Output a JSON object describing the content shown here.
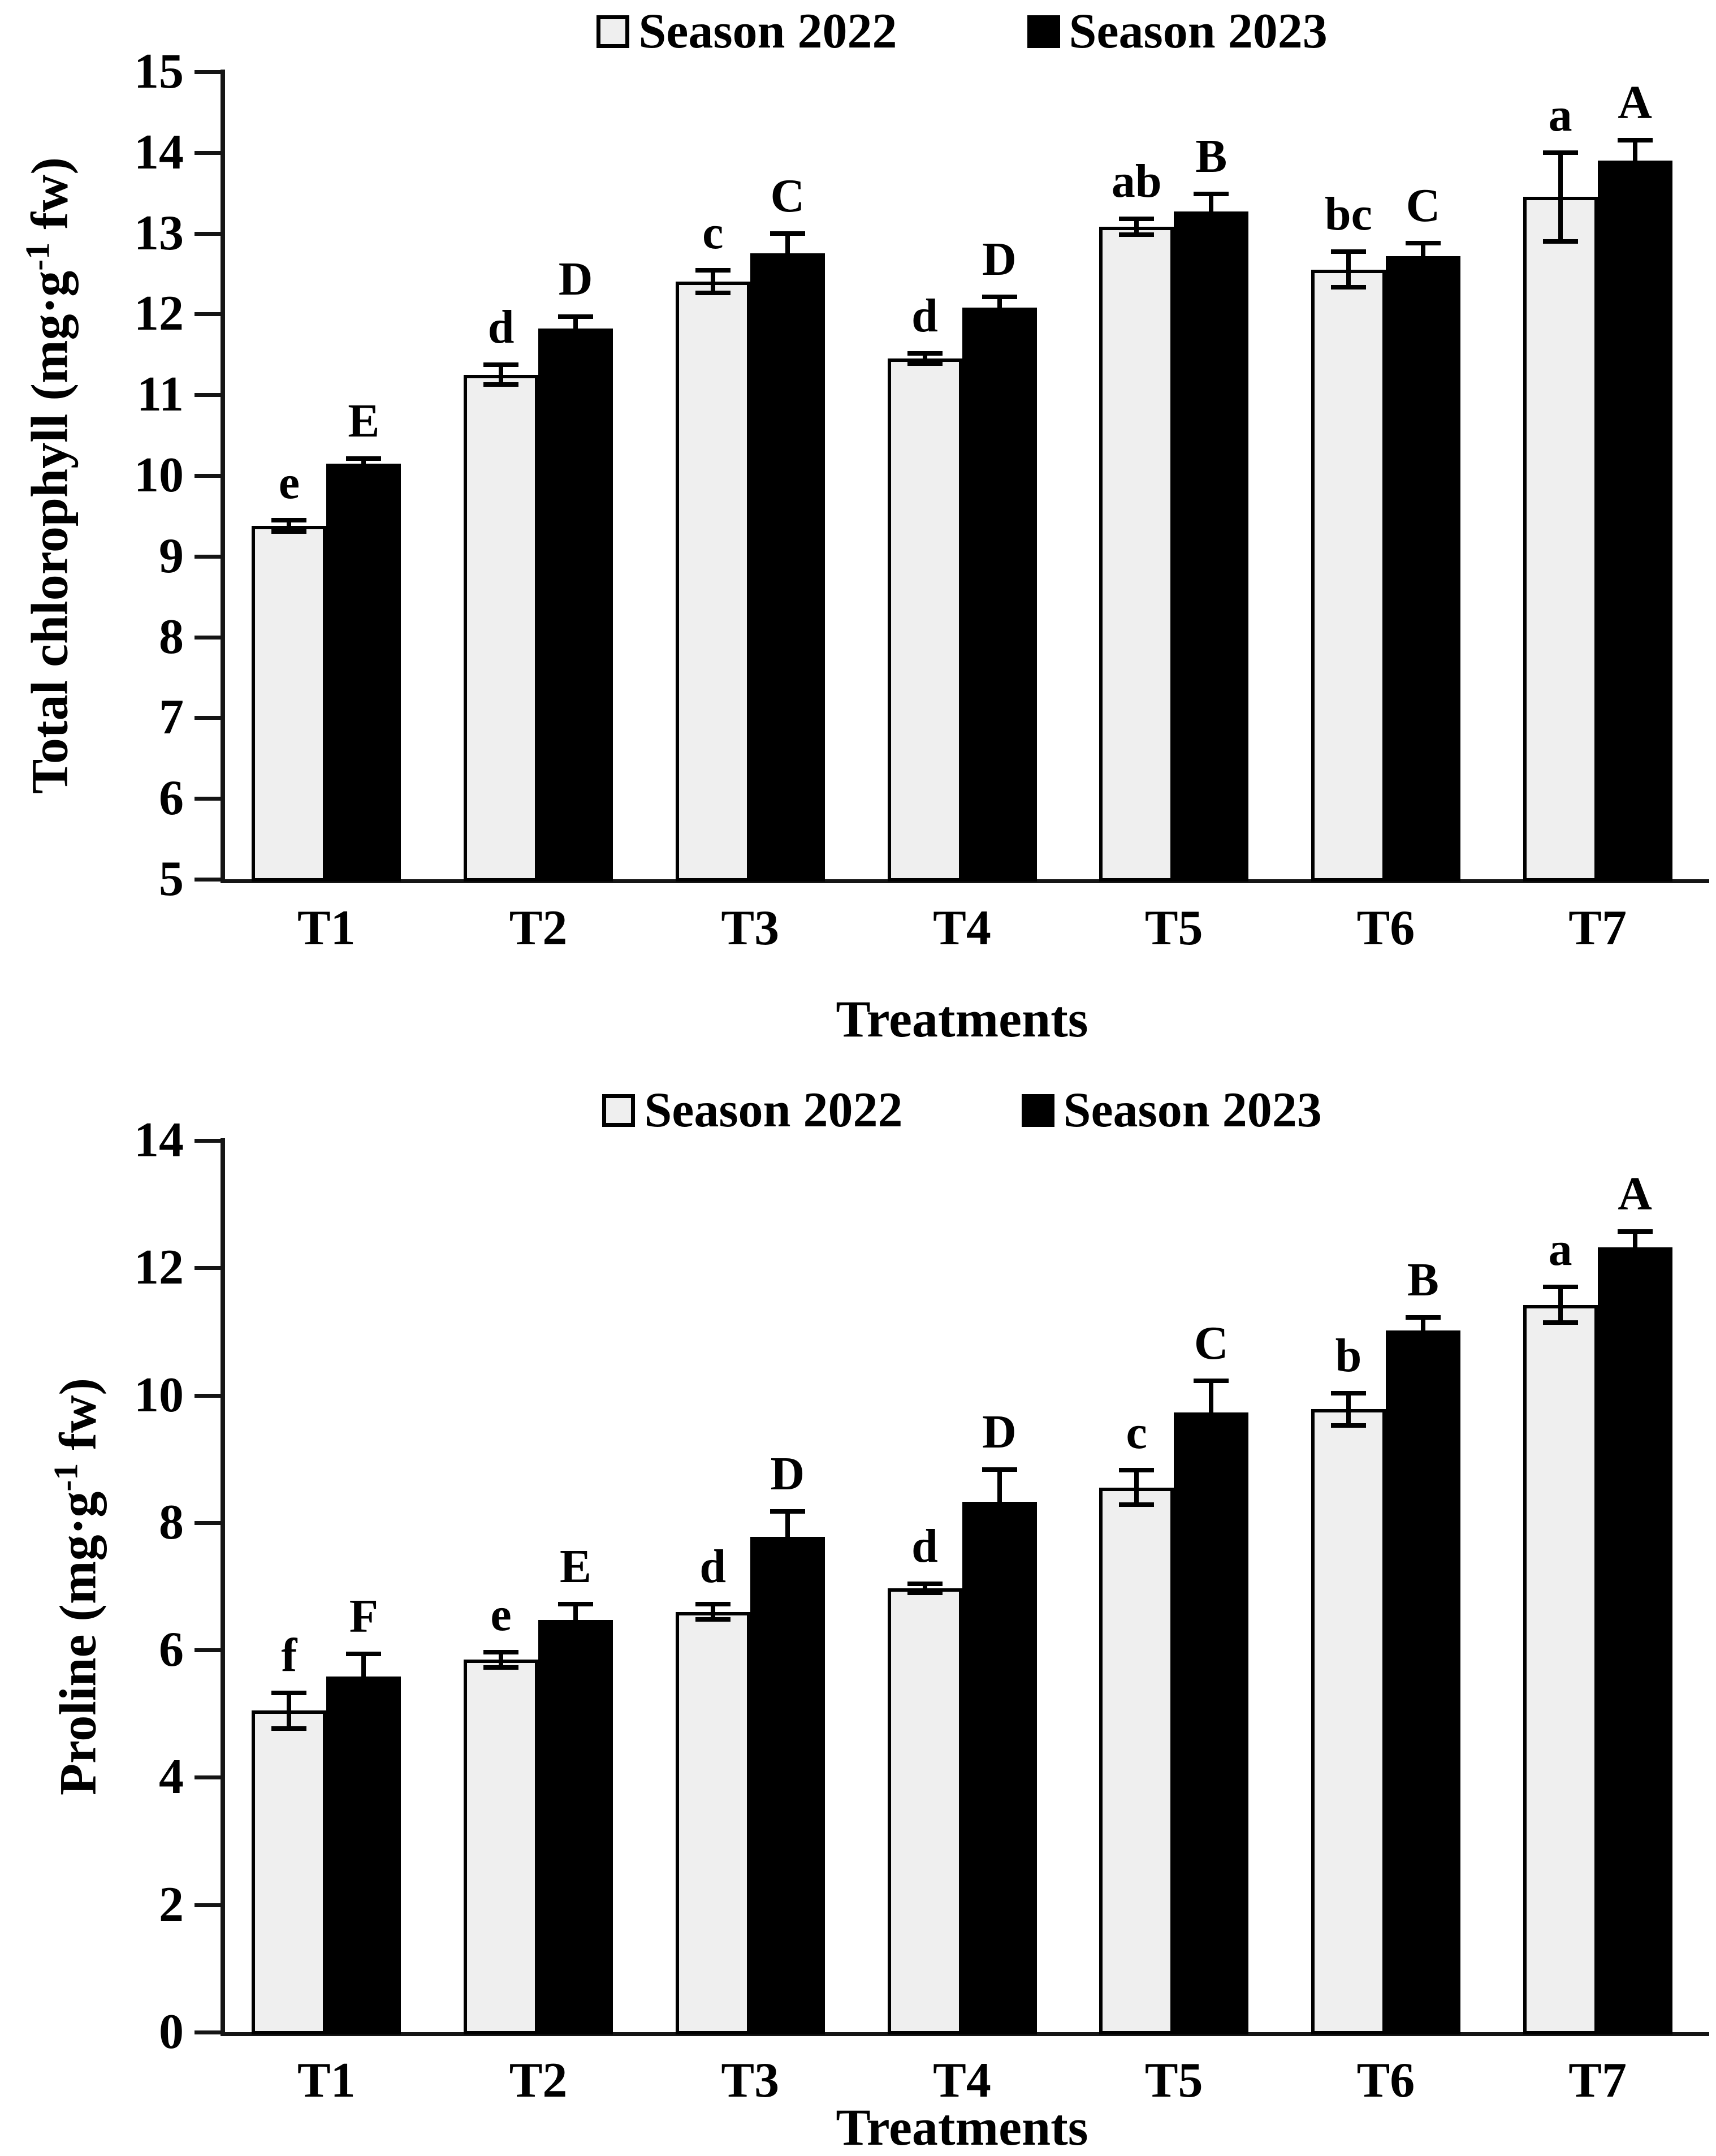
{
  "figure": {
    "background": "#ffffff",
    "bar_border_color": "#000000",
    "axis_color": "#151515",
    "series_colors": {
      "season2022": "#efefef",
      "season2023": "#000000"
    }
  },
  "chart_data": [
    {
      "type": "bar",
      "title": "",
      "xlabel": "Treatments",
      "ylabel": "Total chlorophyll (mg·g⁻¹ fw)",
      "ylabel_parts": {
        "pre": "Total chlorophyll (mg·g",
        "sup": "-1",
        "post": " fw)"
      },
      "ylim": [
        5,
        15
      ],
      "yticks": [
        15,
        14,
        13,
        12,
        11,
        10,
        9,
        8,
        7,
        6,
        5
      ],
      "grid": false,
      "legend_position": "top",
      "categories": [
        "T1",
        "T2",
        "T3",
        "T4",
        "T5",
        "T6",
        "T7"
      ],
      "series": [
        {
          "name": "Season 2022",
          "swatch": "light",
          "values": [
            9.38,
            11.25,
            12.4,
            11.45,
            13.08,
            12.55,
            13.45
          ],
          "errors": [
            0.07,
            0.12,
            0.14,
            0.06,
            0.1,
            0.22,
            0.55
          ],
          "letters": [
            "e",
            "d",
            "c",
            "d",
            "ab",
            "bc",
            "a"
          ]
        },
        {
          "name": "Season 2023",
          "swatch": "dark",
          "values": [
            10.15,
            11.82,
            12.75,
            12.08,
            13.27,
            12.72,
            13.9
          ],
          "errors": [
            0.06,
            0.15,
            0.25,
            0.13,
            0.22,
            0.16,
            0.25
          ],
          "letters": [
            "E",
            "D",
            "C",
            "D",
            "B",
            "C",
            "A"
          ]
        }
      ]
    },
    {
      "type": "bar",
      "title": "",
      "xlabel": "Treatments",
      "ylabel": "Proline (mg·g⁻¹ fw)",
      "ylabel_parts": {
        "pre": "Proline (mg·g",
        "sup": "-1",
        "post": " fw)"
      },
      "ylim": [
        0,
        14
      ],
      "yticks": [
        14,
        12,
        10,
        8,
        6,
        4,
        2,
        0
      ],
      "grid": false,
      "legend_position": "top",
      "categories": [
        "T1",
        "T2",
        "T3",
        "T4",
        "T5",
        "T6",
        "T7"
      ],
      "series": [
        {
          "name": "Season 2022",
          "swatch": "light",
          "values": [
            5.05,
            5.85,
            6.6,
            6.97,
            8.55,
            9.78,
            11.42
          ],
          "errors": [
            0.28,
            0.12,
            0.12,
            0.07,
            0.27,
            0.25,
            0.28
          ],
          "letters": [
            "f",
            "e",
            "d",
            "d",
            "c",
            "b",
            "a"
          ]
        },
        {
          "name": "Season 2023",
          "swatch": "dark",
          "values": [
            5.58,
            6.47,
            7.78,
            8.33,
            9.73,
            11.02,
            12.32
          ],
          "errors": [
            0.36,
            0.25,
            0.4,
            0.5,
            0.5,
            0.2,
            0.25
          ],
          "letters": [
            "F",
            "E",
            "D",
            "D",
            "C",
            "B",
            "A"
          ]
        }
      ]
    }
  ]
}
